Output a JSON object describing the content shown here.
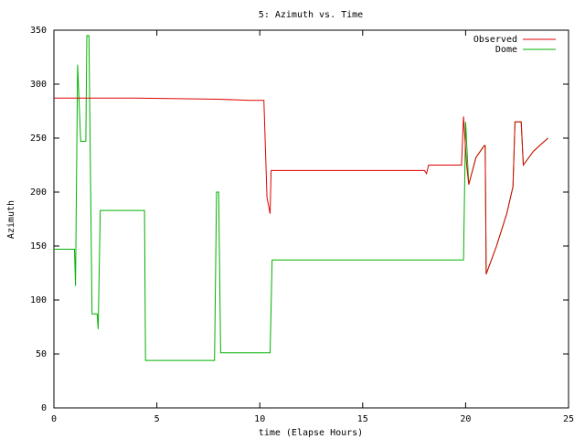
{
  "chart_data": {
    "type": "line",
    "title": "5: Azimuth vs. Time",
    "x_label": "time (Elapse Hours)",
    "y_label": "Azimuth",
    "xlim": [
      0,
      25
    ],
    "xticks": [
      0,
      5,
      10,
      15,
      20,
      25
    ],
    "ylim": [
      0,
      350
    ],
    "yticks": [
      0,
      50,
      100,
      150,
      200,
      250,
      300,
      350
    ],
    "legend": "top-right",
    "series": [
      {
        "name": "Observed",
        "color": "#e00000",
        "x": [
          0,
          4,
          8,
          9.5,
          10.2,
          10.35,
          10.5,
          10.55,
          18,
          18.1,
          18.2,
          19.8,
          19.9,
          20.05,
          20.15,
          20.5,
          20.9,
          20.95,
          21.0,
          21.5,
          22.0,
          22.3,
          22.4,
          22.7,
          22.8,
          23.3,
          24
        ],
        "values": [
          287,
          287,
          286,
          285,
          285,
          195,
          180,
          220,
          220,
          217,
          225,
          225,
          270,
          225,
          207,
          232,
          243,
          243,
          124,
          150,
          180,
          205,
          265,
          265,
          225,
          238,
          250
        ]
      },
      {
        "name": "Dome",
        "color": "#00b000",
        "x": [
          0,
          1.0,
          1.05,
          1.15,
          1.3,
          1.55,
          1.6,
          1.7,
          1.85,
          2.1,
          2.15,
          2.25,
          4.4,
          4.45,
          7.8,
          7.9,
          8.0,
          8.1,
          10.5,
          10.6,
          19.9,
          20.0,
          20.15,
          20.5,
          20.9,
          20.95,
          21.0,
          21.5,
          22.0,
          22.3,
          22.4,
          22.7,
          22.8,
          23.3,
          24
        ],
        "values": [
          147,
          147,
          113,
          318,
          247,
          247,
          345,
          345,
          87,
          87,
          73,
          183,
          183,
          44,
          44,
          200,
          200,
          51,
          51,
          137,
          137,
          265,
          207,
          232,
          243,
          243,
          124,
          150,
          180,
          205,
          265,
          265,
          225,
          238,
          250
        ]
      }
    ]
  }
}
